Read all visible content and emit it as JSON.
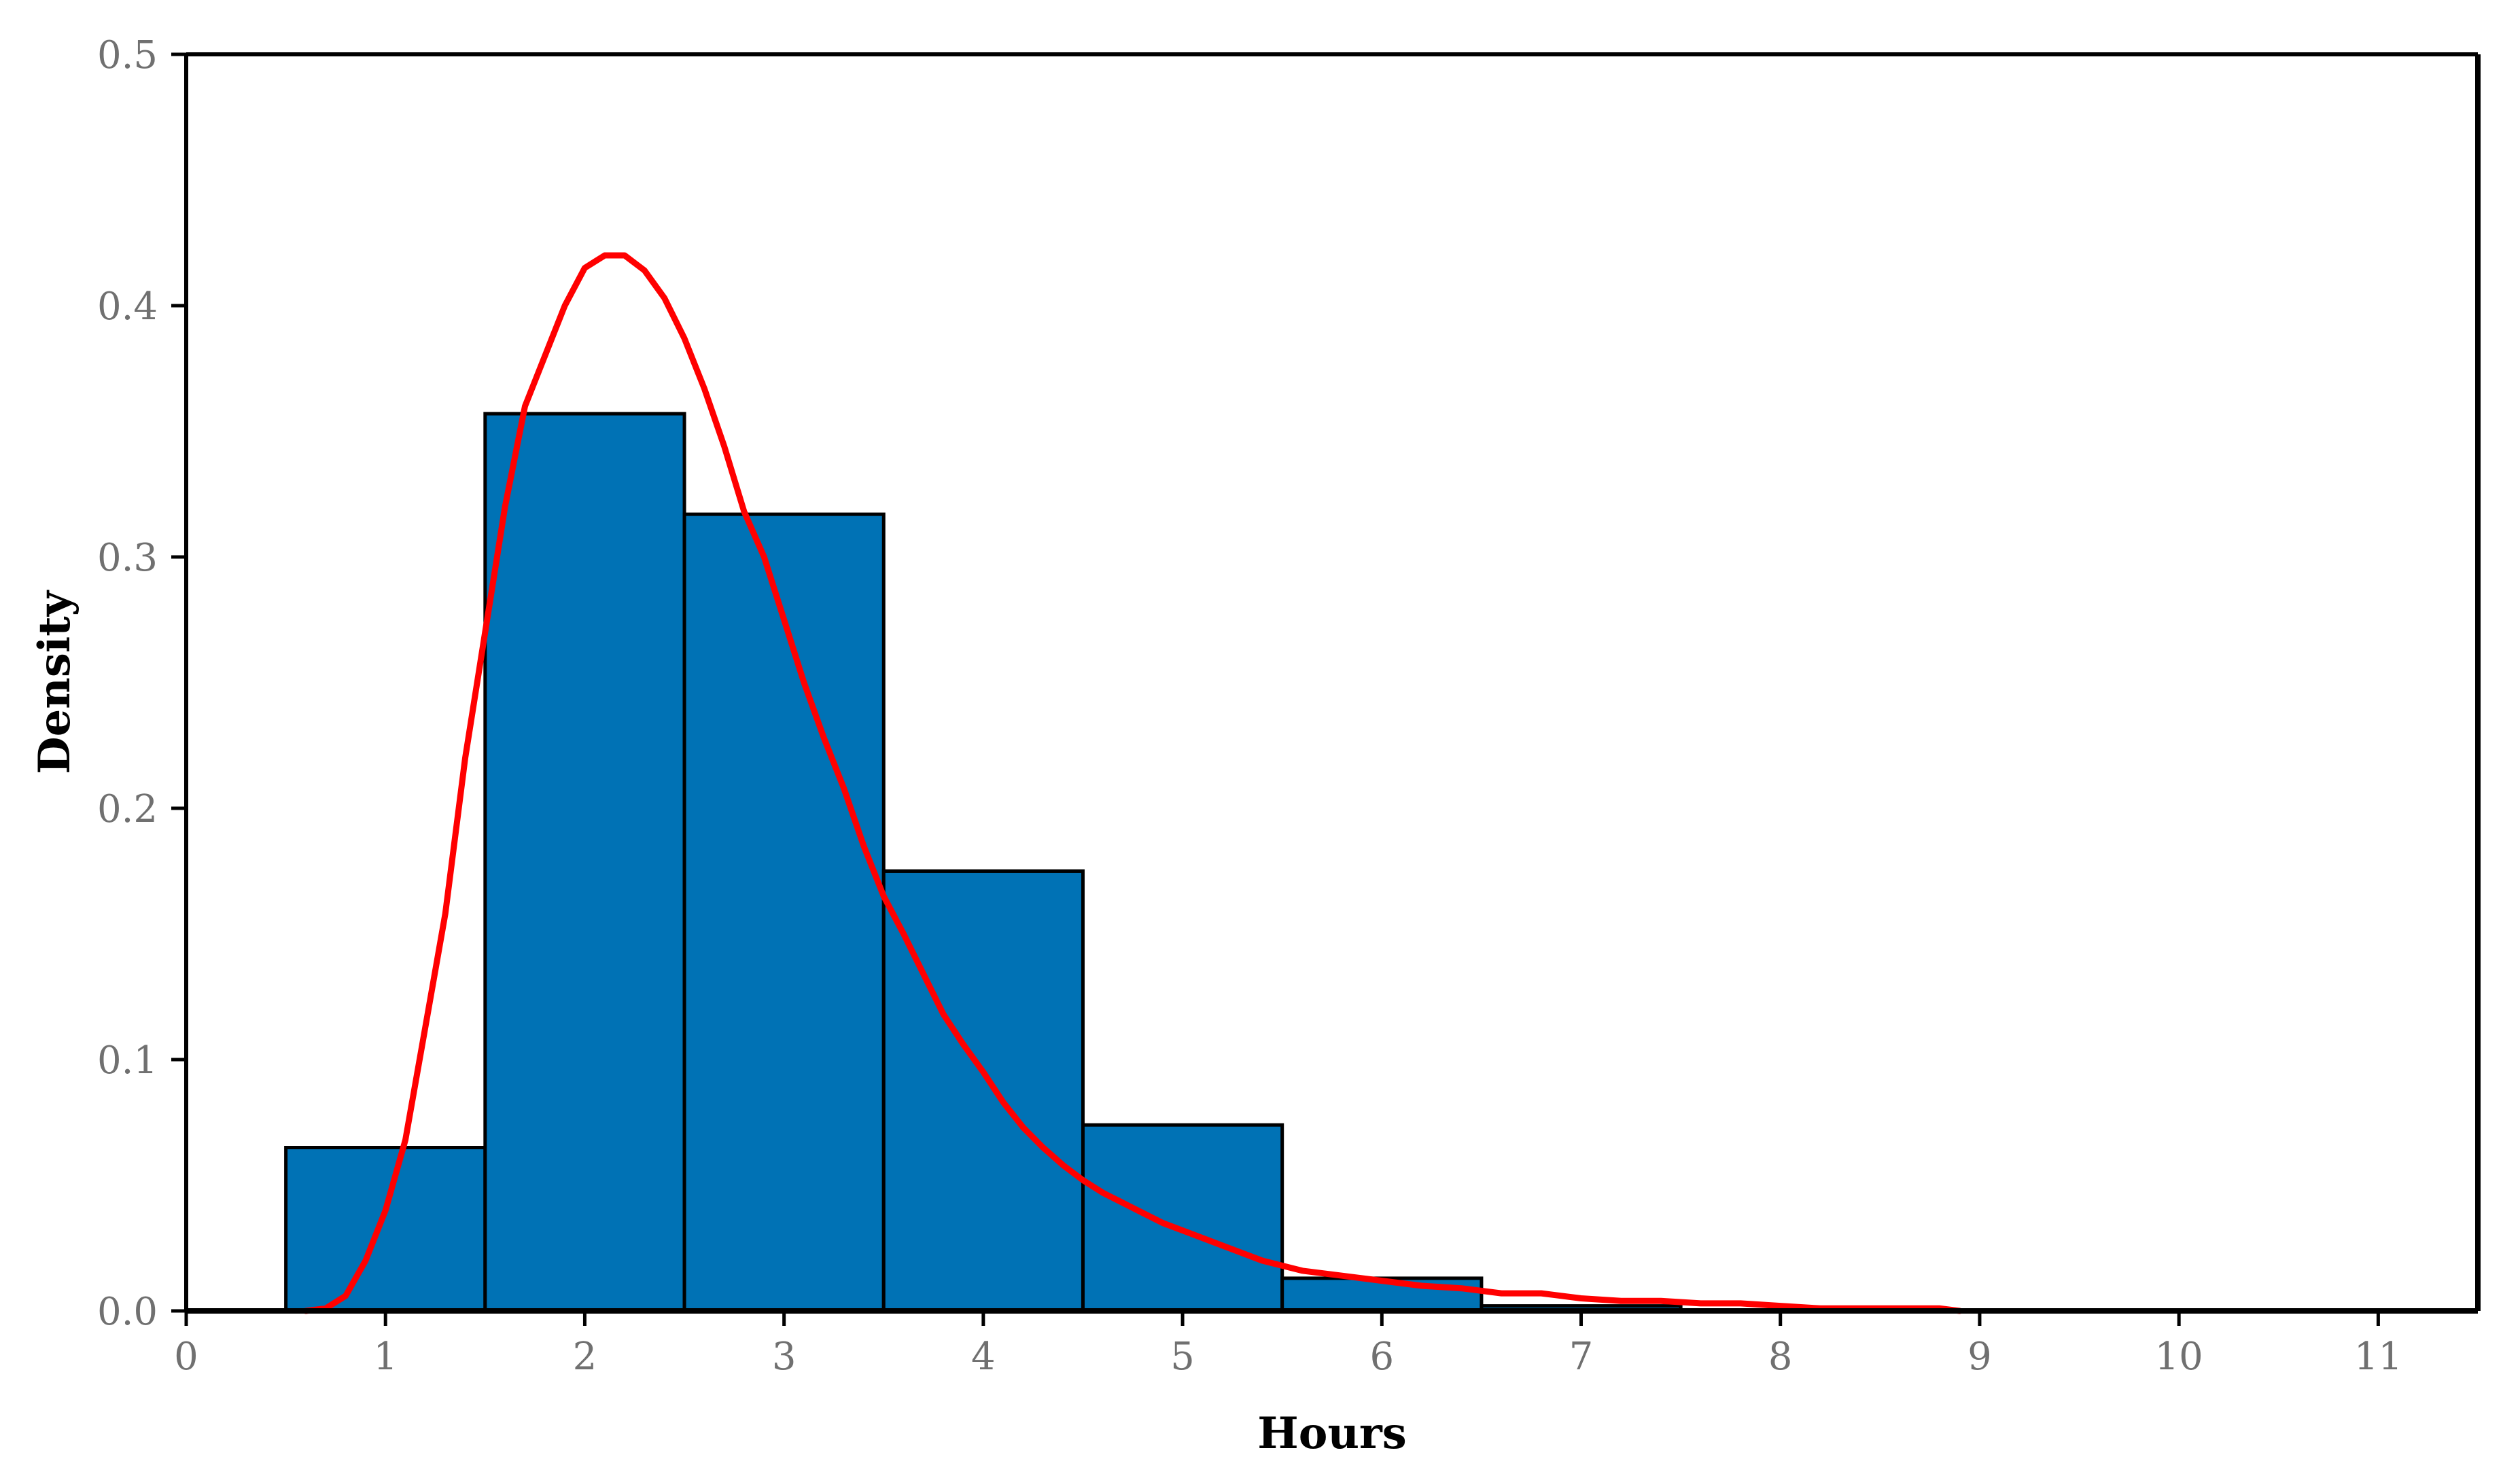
{
  "chart_data": {
    "type": "bar",
    "subtype": "histogram-with-density-curve",
    "title": "",
    "xlabel": "Hours",
    "ylabel": "Density",
    "xlim": [
      0,
      11.5
    ],
    "ylim": [
      0,
      0.5
    ],
    "x_ticks": [
      0,
      1,
      2,
      3,
      4,
      5,
      6,
      7,
      8,
      9,
      10,
      11
    ],
    "x_tick_labels": [
      "0",
      "1",
      "2",
      "3",
      "4",
      "5",
      "6",
      "7",
      "8",
      "9",
      "10",
      "11"
    ],
    "y_ticks": [
      0,
      0.1,
      0.2,
      0.3,
      0.4,
      0.5
    ],
    "y_tick_labels": [
      "0.0",
      "0.1",
      "0.2",
      "0.3",
      "0.4",
      "0.5"
    ],
    "grid": false,
    "legend": "none",
    "bins": [
      {
        "x0": 0.5,
        "x1": 1.5,
        "value": 0.065
      },
      {
        "x0": 1.5,
        "x1": 2.5,
        "value": 0.357
      },
      {
        "x0": 2.5,
        "x1": 3.5,
        "value": 0.317
      },
      {
        "x0": 3.5,
        "x1": 4.5,
        "value": 0.175
      },
      {
        "x0": 4.5,
        "x1": 5.5,
        "value": 0.074
      },
      {
        "x0": 5.5,
        "x1": 6.5,
        "value": 0.013
      },
      {
        "x0": 6.5,
        "x1": 7.5,
        "value": 0.002
      }
    ],
    "series": [
      {
        "type": "line",
        "x": [
          0.6,
          0.7,
          0.8,
          0.9,
          1.0,
          1.1,
          1.2,
          1.3,
          1.4,
          1.5,
          1.6,
          1.7,
          1.8,
          1.9,
          2.0,
          2.1,
          2.2,
          2.3,
          2.4,
          2.5,
          2.6,
          2.7,
          2.8,
          2.9,
          3.0,
          3.1,
          3.2,
          3.3,
          3.4,
          3.5,
          3.6,
          3.7,
          3.8,
          3.9,
          4.0,
          4.1,
          4.2,
          4.3,
          4.4,
          4.5,
          4.6,
          4.7,
          4.8,
          4.9,
          5.0,
          5.2,
          5.4,
          5.6,
          5.8,
          6.0,
          6.2,
          6.4,
          6.6,
          6.8,
          7.0,
          7.2,
          7.4,
          7.6,
          7.8,
          8.0,
          8.2,
          8.4,
          8.6,
          8.8,
          8.9
        ],
        "y": [
          0.0,
          0.001,
          0.006,
          0.02,
          0.04,
          0.068,
          0.113,
          0.158,
          0.22,
          0.27,
          0.32,
          0.36,
          0.38,
          0.4,
          0.415,
          0.42,
          0.42,
          0.414,
          0.403,
          0.387,
          0.367,
          0.344,
          0.318,
          0.3,
          0.275,
          0.25,
          0.228,
          0.208,
          0.185,
          0.165,
          0.15,
          0.134,
          0.118,
          0.106,
          0.095,
          0.083,
          0.073,
          0.065,
          0.058,
          0.052,
          0.047,
          0.043,
          0.039,
          0.035,
          0.032,
          0.026,
          0.02,
          0.016,
          0.014,
          0.012,
          0.01,
          0.009,
          0.007,
          0.007,
          0.005,
          0.004,
          0.004,
          0.003,
          0.003,
          0.002,
          0.001,
          0.001,
          0.001,
          0.001,
          0.0
        ]
      }
    ]
  },
  "colors": {
    "bar_fill": "#0072B5",
    "bar_stroke": "#000000",
    "curve": "#FF0000",
    "frame": "#000000",
    "tick_label": "#707070",
    "axis_title": "#000000"
  }
}
